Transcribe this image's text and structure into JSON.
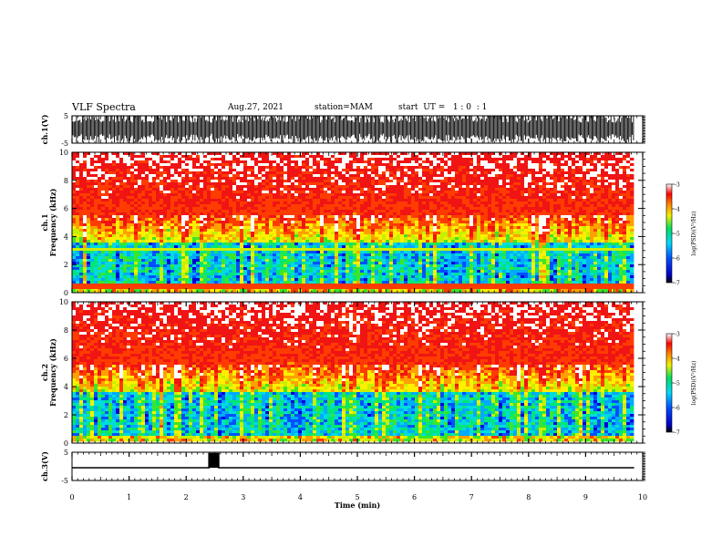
{
  "header": {
    "title": "VLF Spectra",
    "date": "Aug.27, 2021",
    "station": "station=MAM",
    "start": "start  UT =   1 : 0  : 1"
  },
  "chart_data": [
    {
      "type": "line",
      "name": "ch1_waveform",
      "ylabel": "ch.1(V)",
      "ylim": [
        -5,
        5
      ],
      "yticks": [
        "5",
        "-5"
      ],
      "xlim": [
        0,
        10
      ]
    },
    {
      "type": "heatmap",
      "name": "ch1_spectrogram",
      "ylabel": "ch.1\nFrequency  (kHz)",
      "ylabel_lines": [
        "ch.1",
        "Frequency  (kHz)"
      ],
      "ylim": [
        0,
        10
      ],
      "yticks": [
        "0",
        "2",
        "4",
        "6",
        "8",
        "10"
      ],
      "xlim": [
        0,
        10
      ],
      "colorbar": {
        "label": "log(PSD)(V²/Hz)",
        "range": [
          -7,
          -3
        ],
        "ticks": [
          "-3",
          "-4",
          "-5",
          "-6",
          "-7"
        ]
      }
    },
    {
      "type": "heatmap",
      "name": "ch2_spectrogram",
      "ylabel_lines": [
        "ch.2",
        "Frequency  (kHz)"
      ],
      "ylim": [
        0,
        10
      ],
      "yticks": [
        "0",
        "2",
        "4",
        "6",
        "8",
        "10"
      ],
      "xlim": [
        0,
        10
      ],
      "colorbar": {
        "label": "log(PSD)(V²/Hz)",
        "range": [
          -7,
          -3
        ],
        "ticks": [
          "-3",
          "-4",
          "-5",
          "-6",
          "-7"
        ]
      }
    },
    {
      "type": "line",
      "name": "ch3_signal",
      "ylabel": "ch.3(V)",
      "ylim": [
        -5,
        5
      ],
      "yticks": [
        "5",
        "-5"
      ],
      "xlim": [
        0,
        10
      ],
      "x": [
        0,
        2.4,
        2.4,
        2.57,
        2.57,
        9.85
      ],
      "y": [
        -0.5,
        -0.5,
        4.5,
        4.5,
        -0.5,
        -0.5
      ]
    }
  ],
  "x_axis": {
    "label": "Time  (min)",
    "ticks": [
      "0",
      "1",
      "2",
      "3",
      "4",
      "5",
      "6",
      "7",
      "8",
      "9",
      "10"
    ]
  },
  "colors": {
    "frame": "#000000"
  }
}
